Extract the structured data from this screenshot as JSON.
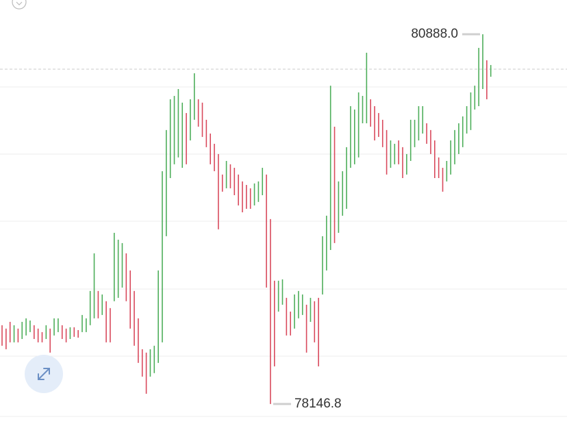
{
  "chart_data": {
    "type": "range-bar",
    "ylim": [
      77984,
      81142
    ],
    "grid": true,
    "up_color": "#4dae5a",
    "down_color": "#d9495c",
    "price_line": 80629,
    "highs": [
      78731,
      78706,
      78756,
      78731,
      78706,
      78756,
      78782,
      78766,
      78731,
      78706,
      78680,
      78731,
      78706,
      78782,
      78782,
      78731,
      78706,
      78716,
      78716,
      78695,
      78807,
      78782,
      78985,
      79264,
      78985,
      78959,
      78909,
      78858,
      79416,
      79365,
      79340,
      79264,
      79137,
      78985,
      78782,
      78553,
      78528,
      78553,
      78579,
      79137,
      79873,
      80178,
      80406,
      80431,
      80482,
      80381,
      80304,
      80406,
      80599,
      80406,
      80381,
      80254,
      80152,
      80076,
      80000,
      79848,
      79949,
      79924,
      79898,
      79848,
      79797,
      79771,
      79746,
      79782,
      79797,
      79898,
      79848,
      79518,
      79061,
      79061,
      79071,
      78934,
      78832,
      78959,
      78985,
      78959,
      78883,
      78934,
      78909,
      78934,
      79391,
      79543,
      80507,
      80203,
      79797,
      79873,
      80051,
      80355,
      80330,
      80457,
      80431,
      80751,
      80406,
      80355,
      80304,
      80254,
      80178,
      80101,
      80076,
      80101,
      80051,
      80000,
      80254,
      80254,
      80355,
      80355,
      80228,
      80178,
      80101,
      79975,
      79898,
      79949,
      80101,
      80178,
      80228,
      80279,
      80355,
      80457,
      80507,
      80787,
      80888.0,
      80695,
      80660
    ],
    "lows": [
      78579,
      78553,
      78604,
      78604,
      78604,
      78629,
      78655,
      78680,
      78629,
      78604,
      78604,
      78629,
      78528,
      78655,
      78680,
      78629,
      78604,
      78629,
      78645,
      78639,
      78680,
      78680,
      78731,
      78782,
      78782,
      78807,
      78604,
      78604,
      78909,
      78934,
      79010,
      78909,
      78706,
      78579,
      78452,
      78350,
      78223,
      78350,
      78376,
      78452,
      78604,
      79391,
      79822,
      79924,
      79975,
      79898,
      79924,
      80101,
      80254,
      80203,
      80127,
      80051,
      79924,
      79873,
      79442,
      79721,
      79746,
      79746,
      79695,
      79619,
      79568,
      79594,
      79594,
      79619,
      79645,
      79695,
      79010,
      78146.8,
      78426,
      78832,
      78883,
      78655,
      78655,
      78706,
      78782,
      78807,
      78528,
      78756,
      78604,
      78426,
      78959,
      79137,
      79289,
      79340,
      79416,
      79543,
      79594,
      79898,
      79924,
      79975,
      80228,
      80228,
      80203,
      80101,
      80127,
      80051,
      79848,
      79898,
      79924,
      79924,
      79822,
      79848,
      79949,
      80051,
      80101,
      80152,
      80076,
      80000,
      79822,
      79822,
      79721,
      79797,
      79848,
      79924,
      80000,
      80051,
      80152,
      80178,
      80330,
      80355,
      80482,
      80406,
      80573
    ],
    "directions": [
      "down",
      "down",
      "down",
      "up",
      "down",
      "up",
      "up",
      "up",
      "down",
      "down",
      "down",
      "up",
      "down",
      "up",
      "up",
      "down",
      "down",
      "up",
      "down",
      "down",
      "up",
      "up",
      "up",
      "up",
      "down",
      "up",
      "down",
      "down",
      "up",
      "up",
      "up",
      "down",
      "down",
      "down",
      "down",
      "down",
      "down",
      "up",
      "up",
      "up",
      "up",
      "up",
      "up",
      "up",
      "up",
      "up",
      "down",
      "up",
      "up",
      "down",
      "down",
      "down",
      "down",
      "down",
      "down",
      "down",
      "up",
      "down",
      "down",
      "down",
      "down",
      "down",
      "down",
      "up",
      "up",
      "up",
      "down",
      "down",
      "down",
      "up",
      "up",
      "down",
      "down",
      "up",
      "up",
      "up",
      "down",
      "up",
      "down",
      "down",
      "up",
      "up",
      "up",
      "down",
      "up",
      "up",
      "up",
      "up",
      "up",
      "up",
      "up",
      "up",
      "down",
      "down",
      "down",
      "down",
      "down",
      "up",
      "up",
      "down",
      "down",
      "up",
      "up",
      "up",
      "up",
      "up",
      "down",
      "down",
      "down",
      "down",
      "down",
      "up",
      "up",
      "up",
      "up",
      "up",
      "up",
      "up",
      "up",
      "up",
      "up",
      "down",
      "up"
    ],
    "max_label": {
      "value": 80888.0,
      "label": "80888.0"
    },
    "min_label": {
      "value": 78146.8,
      "label": "78146.8"
    }
  }
}
